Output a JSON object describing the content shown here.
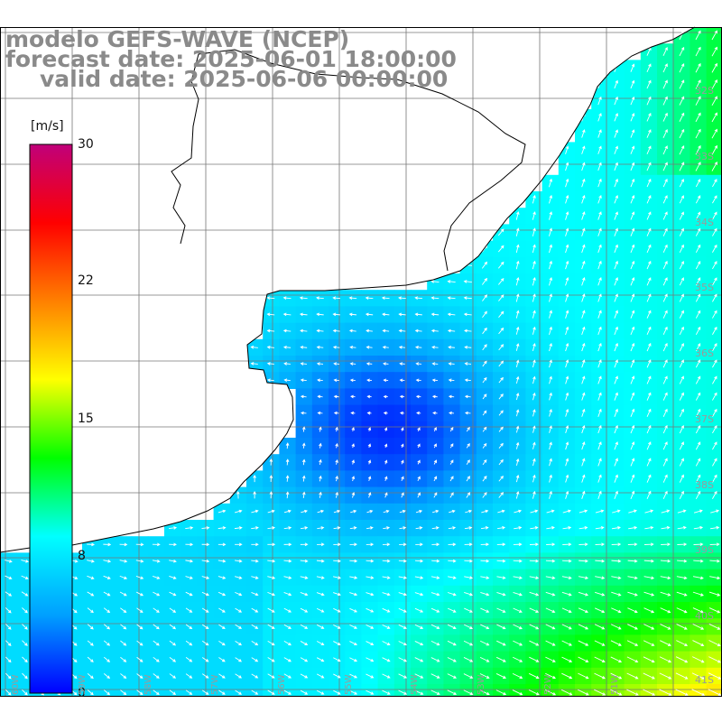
{
  "title": {
    "model": "modelo GEFS-WAVE (NCEP)",
    "forecast": "forecast date: 2025-06-01 18:00:00",
    "valid": "valid date: 2025-06-06 00:00:00"
  },
  "colorbar": {
    "unit": "[m/s]",
    "ticks": [
      "30",
      "22",
      "15",
      "8",
      "0"
    ],
    "range": [
      0,
      30
    ],
    "colors": [
      "#0000ff",
      "#00a0ff",
      "#00ffff",
      "#00ff00",
      "#ffff00",
      "#ff8000",
      "#ff0000",
      "#c0007a"
    ]
  },
  "grid": {
    "lat_labels": [
      "32S",
      "33S",
      "34S",
      "35S",
      "36S",
      "37S",
      "38S",
      "39S",
      "40S",
      "41S"
    ],
    "lon_labels": [
      "60W",
      "59W",
      "58W",
      "57W",
      "56W",
      "55W",
      "54W",
      "53W",
      "52W",
      "51W"
    ]
  },
  "colors": {
    "land": "#ffffff",
    "coast": "#000000",
    "grid": "#777777",
    "arrow": "#ffffff"
  },
  "map_data": {
    "field": "wind speed (m/s) with direction arrows",
    "calm_core_speed": 1,
    "nw_open_sea_speed": 8,
    "southeast_speed": 13
  }
}
